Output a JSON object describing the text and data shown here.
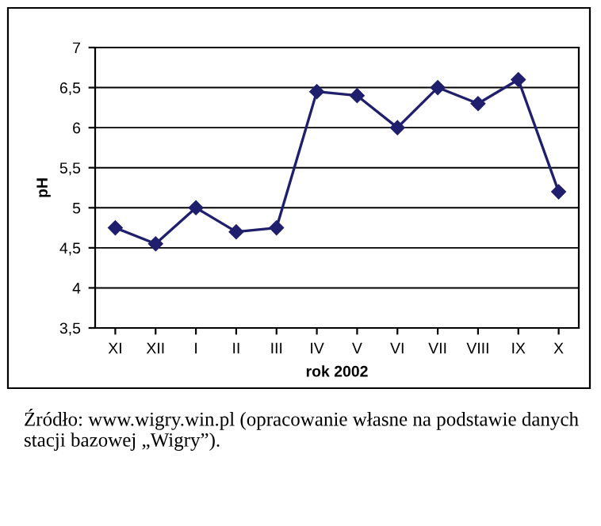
{
  "chart_data": {
    "type": "line",
    "xlabel": "rok 2002",
    "ylabel": "pH",
    "categories": [
      "XI",
      "XII",
      "I",
      "II",
      "III",
      "IV",
      "V",
      "VI",
      "VII",
      "VIII",
      "IX",
      "X"
    ],
    "series": [
      {
        "color": "#1f1f6e",
        "values": [
          4.75,
          4.55,
          5.0,
          4.7,
          4.75,
          6.45,
          6.4,
          6.0,
          6.5,
          6.3,
          6.6,
          5.2
        ]
      }
    ],
    "ylim": [
      3.5,
      7
    ],
    "yticks": [
      {
        "value": 3.5,
        "label": "3,5"
      },
      4,
      {
        "value": 4.5,
        "label": "4,5"
      },
      5,
      {
        "value": 5.5,
        "label": "5,5"
      },
      6,
      {
        "value": 6.5,
        "label": "6,5"
      },
      7
    ],
    "grid": "y",
    "marker": "diamond",
    "line_style": "solid",
    "annotations": [
      "Źródło: www.wigry.win.pl (opracowanie własne na podstawie danych stacji bazowej „Wigry”)."
    ]
  }
}
